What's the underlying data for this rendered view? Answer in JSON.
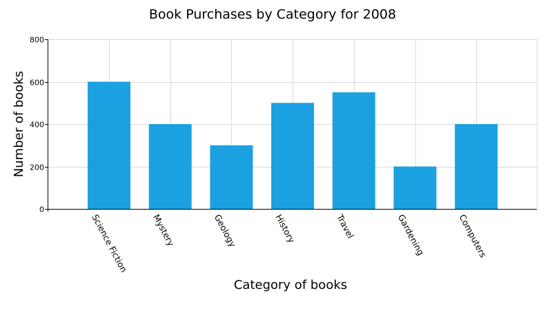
{
  "chart_data": {
    "type": "bar",
    "title": "Book Purchases by Category for 2008",
    "xlabel": "Category of books",
    "ylabel": "Number of books",
    "categories": [
      "Science Fiction",
      "Mystery",
      "Geology",
      "History",
      "Travel",
      "Gardening",
      "Computers"
    ],
    "values": [
      600,
      400,
      300,
      500,
      550,
      200,
      400
    ],
    "ylim": [
      0,
      800
    ],
    "yticks": [
      0,
      200,
      400,
      600,
      800
    ],
    "grid": true,
    "legend": "none",
    "bar_color": "#1ba1e2",
    "x_tick_rotation": "rotated"
  }
}
